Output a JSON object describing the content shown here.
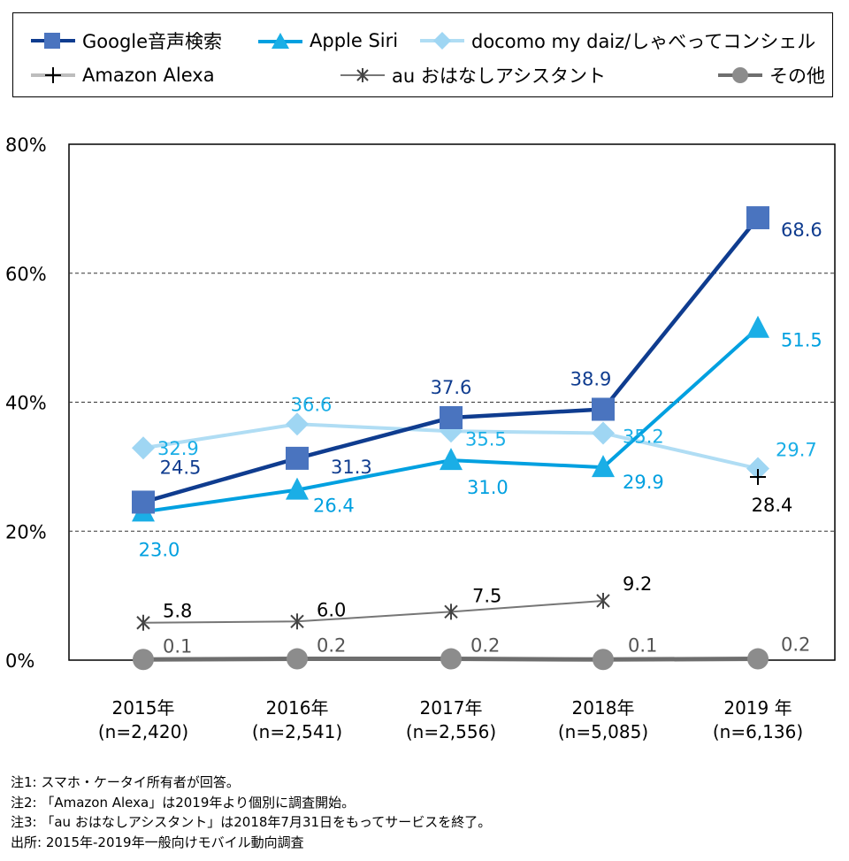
{
  "chart_data": {
    "type": "line",
    "categories": [
      "2015年",
      "2016年",
      "2017年",
      "2018年",
      "2019 年"
    ],
    "sample_sizes": [
      "(n=2,420)",
      "(n=2,541)",
      "(n=2,556)",
      "(n=5,085)",
      "(n=6,136)"
    ],
    "ylim": [
      0,
      80
    ],
    "y_ticks": [
      {
        "value": 0,
        "label": "0%"
      },
      {
        "value": 20,
        "label": "20%"
      },
      {
        "value": 40,
        "label": "40%"
      },
      {
        "value": 60,
        "label": "60%"
      },
      {
        "value": 80,
        "label": "80%"
      }
    ],
    "gridlines": [
      20,
      40,
      60
    ],
    "legend_position": "top",
    "series": [
      {
        "key": "google",
        "name": "Google音声検索",
        "color": "#0f3c8f",
        "marker_color": "#4a74bf",
        "marker": "square",
        "values": [
          24.5,
          31.3,
          37.6,
          38.9,
          68.6
        ],
        "labels": [
          "24.5",
          "31.3",
          "37.6",
          "38.9",
          "68.6"
        ],
        "label_color": "#0f3c8f"
      },
      {
        "key": "siri",
        "name": "Apple Siri",
        "color": "#00a0e0",
        "marker_color": "#1aaee6",
        "marker": "triangle",
        "values": [
          23.0,
          26.4,
          31.0,
          29.9,
          51.5
        ],
        "labels": [
          "23.0",
          "26.4",
          "31.0",
          "29.9",
          "51.5"
        ],
        "label_color": "#00a0e0"
      },
      {
        "key": "docomo",
        "name": "docomo my daiz/しゃべってコンシェル",
        "color": "#b0ddf4",
        "marker_color": "#9fd6f3",
        "marker": "diamond",
        "values": [
          32.9,
          36.6,
          35.5,
          35.2,
          29.7
        ],
        "labels": [
          "32.9",
          "36.6",
          "35.5",
          "35.2",
          "29.7"
        ],
        "label_color": "#1aaee6"
      },
      {
        "key": "alexa",
        "name": "Amazon Alexa",
        "color": "#000000",
        "marker_color": "#000000",
        "marker": "plus",
        "values": [
          null,
          null,
          null,
          null,
          28.4
        ],
        "labels": [
          null,
          null,
          null,
          null,
          "28.4"
        ],
        "label_color": "#000000"
      },
      {
        "key": "au",
        "name": "au おはなしアシスタント",
        "color": "#767676",
        "marker_color": "#444444",
        "marker": "asterisk",
        "values": [
          5.8,
          6.0,
          7.5,
          9.2,
          null
        ],
        "labels": [
          "5.8",
          "6.0",
          "7.5",
          "9.2",
          null
        ],
        "label_color": "#000000"
      },
      {
        "key": "other",
        "name": "その他",
        "color": "#6e6e6e",
        "marker_color": "#8c8c8c",
        "marker": "circle",
        "values": [
          0.1,
          0.2,
          0.2,
          0.1,
          0.2
        ],
        "labels": [
          "0.1",
          "0.2",
          "0.2",
          "0.1",
          "0.2"
        ],
        "label_color": "#555555"
      }
    ]
  },
  "notes": [
    "注1: スマホ・ケータイ所有者が回答。",
    "注2: 「Amazon Alexa」は2019年より個別に調査開始。",
    "注3: 「au おはなしアシスタント」は2018年7月31日をもってサービスを終了。",
    "出所: 2015年-2019年一般向けモバイル動向調査"
  ]
}
